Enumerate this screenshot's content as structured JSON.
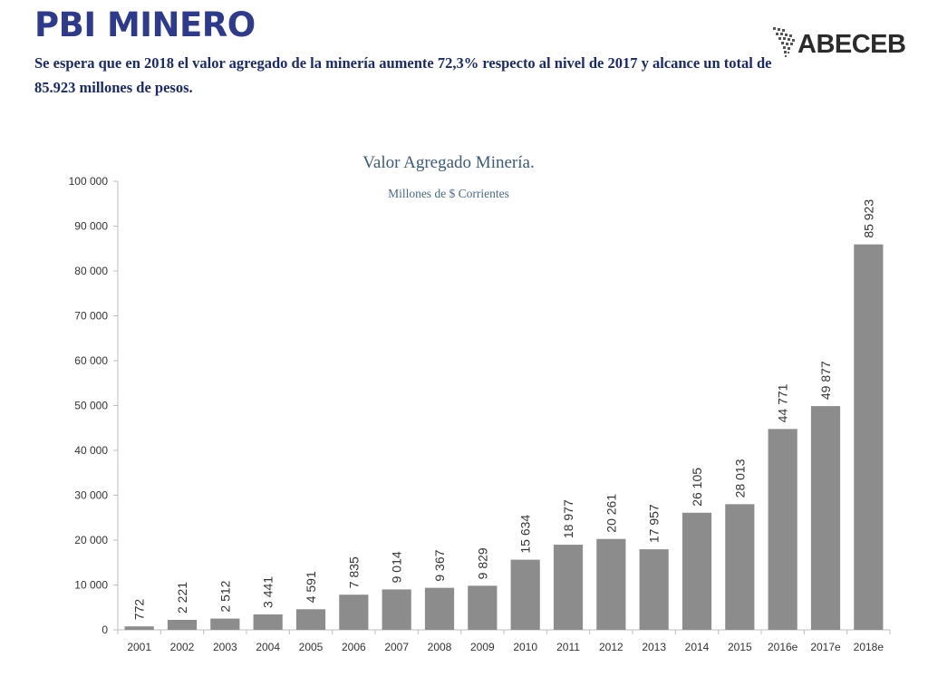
{
  "header": {
    "title": "PBI MINERO",
    "subtitle": "Se espera que en 2018 el valor agregado de la minería aumente 72,3% respecto al nivel de 2017 y alcance  un total de 85.923 millones de pesos."
  },
  "logo": {
    "text": "ABECEB"
  },
  "chart_data": {
    "type": "bar",
    "title": "Valor Agregado Minería.",
    "subtitle": "Millones de $ Corrientes",
    "xlabel": "",
    "ylabel": "",
    "categories": [
      "2001",
      "2002",
      "2003",
      "2004",
      "2005",
      "2006",
      "2007",
      "2008",
      "2009",
      "2010",
      "2011",
      "2012",
      "2013",
      "2014",
      "2015",
      "2016e",
      "2017e",
      "2018e"
    ],
    "values": [
      772,
      2221,
      2512,
      3441,
      4591,
      7835,
      9014,
      9367,
      9829,
      15634,
      18977,
      20261,
      17957,
      26105,
      28013,
      44771,
      49877,
      85923
    ],
    "value_labels": [
      "772",
      "2 221",
      "2 512",
      "3 441",
      "4 591",
      "7 835",
      "9 014",
      "9 367",
      "9 829",
      "15 634",
      "18 977",
      "20 261",
      "17 957",
      "26 105",
      "28 013",
      "44 771",
      "49 877",
      "85 923"
    ],
    "ylim": [
      0,
      100000
    ],
    "yticks": [
      0,
      10000,
      20000,
      30000,
      40000,
      50000,
      60000,
      70000,
      80000,
      90000,
      100000
    ],
    "ytick_labels": [
      "0",
      "10 000",
      "20 000",
      "30 000",
      "40 000",
      "50 000",
      "60 000",
      "70 000",
      "80 000",
      "90 000",
      "100 000"
    ],
    "grid": false,
    "legend": "none",
    "bar_color": "#8c8c8c"
  }
}
